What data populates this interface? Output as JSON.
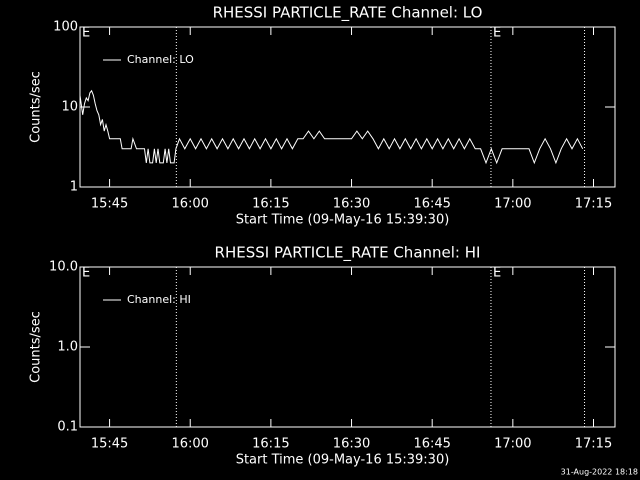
{
  "chart_data": [
    {
      "type": "line",
      "title": "RHESSI PARTICLE_RATE Channel: LO",
      "xlabel": "Start Time (09-May-16 15:39:30)",
      "ylabel": "Counts/sec",
      "log_y": true,
      "ylim": [
        1,
        100
      ],
      "yticks": [
        1,
        10,
        100
      ],
      "xlim": [
        "15:39:30",
        "17:19:00"
      ],
      "xticks": [
        "15:45",
        "16:00",
        "16:15",
        "16:30",
        "16:45",
        "17:00",
        "17:15"
      ],
      "vlines": [
        "15:57:25",
        "16:55:56",
        "17:13:20"
      ],
      "annotations": [
        {
          "x": "15:39:30",
          "text": "E"
        },
        {
          "x": "16:55:56",
          "text": "E"
        }
      ],
      "series": [
        {
          "name": "Channel: LO",
          "color": "#ffffff",
          "x": [
            "15:39:30",
            "15:40:00",
            "15:40:20",
            "15:40:40",
            "15:41:00",
            "15:41:20",
            "15:41:40",
            "15:42:00",
            "15:42:20",
            "15:42:40",
            "15:43:00",
            "15:43:20",
            "15:43:40",
            "15:44:00",
            "15:44:20",
            "15:44:40",
            "15:45:00",
            "15:47:00",
            "15:47:20",
            "15:49:00",
            "15:49:20",
            "15:50:00",
            "15:51:30",
            "15:51:50",
            "15:52:10",
            "15:52:30",
            "15:53:00",
            "15:53:20",
            "15:53:40",
            "15:54:00",
            "15:54:20",
            "15:55:00",
            "15:55:20",
            "15:55:40",
            "15:56:00",
            "15:56:20",
            "15:57:00",
            "15:57:20",
            "15:58:00",
            "15:59:00",
            "16:00:00",
            "16:01:00",
            "16:02:00",
            "16:03:00",
            "16:04:00",
            "16:05:00",
            "16:06:00",
            "16:07:00",
            "16:08:00",
            "16:09:00",
            "16:10:00",
            "16:11:00",
            "16:12:00",
            "16:13:00",
            "16:14:00",
            "16:15:00",
            "16:16:00",
            "16:17:00",
            "16:18:00",
            "16:19:00",
            "16:20:00",
            "16:21:00",
            "16:22:00",
            "16:23:00",
            "16:24:00",
            "16:25:00",
            "16:30:00",
            "16:31:00",
            "16:32:00",
            "16:33:00",
            "16:34:00",
            "16:35:00",
            "16:36:00",
            "16:37:00",
            "16:38:00",
            "16:39:00",
            "16:40:00",
            "16:41:00",
            "16:42:00",
            "16:43:00",
            "16:44:00",
            "16:45:00",
            "16:46:00",
            "16:47:00",
            "16:48:00",
            "16:49:00",
            "16:50:00",
            "16:51:00",
            "16:52:00",
            "16:53:00",
            "16:54:00",
            "16:55:00",
            "16:56:00",
            "16:57:00",
            "16:58:00",
            "17:03:00",
            "17:04:00",
            "17:05:00",
            "17:06:00",
            "17:07:00",
            "17:08:00",
            "17:09:00",
            "17:10:00",
            "17:11:00",
            "17:12:00",
            "17:13:00"
          ],
          "values": [
            14,
            8,
            11,
            13,
            12,
            15,
            16,
            14,
            11,
            9,
            8,
            6,
            7,
            5,
            6,
            5,
            4,
            4,
            3,
            3,
            4,
            3,
            3,
            2,
            3,
            2,
            2,
            3,
            2,
            3,
            2,
            2,
            3,
            2,
            3,
            2,
            2,
            3,
            4,
            3,
            4,
            3,
            4,
            3,
            4,
            3,
            4,
            3,
            4,
            3,
            4,
            3,
            4,
            3,
            4,
            3,
            4,
            3,
            4,
            3,
            4,
            4,
            5,
            4,
            5,
            4,
            4,
            5,
            4,
            5,
            4,
            3,
            4,
            3,
            4,
            3,
            4,
            3,
            4,
            3,
            4,
            3,
            4,
            3,
            4,
            3,
            4,
            3,
            4,
            3,
            3,
            2,
            3,
            2,
            3,
            3,
            2,
            3,
            4,
            3,
            2,
            3,
            4,
            3,
            4,
            3
          ]
        }
      ],
      "legend": "upper left"
    },
    {
      "type": "line",
      "title": "RHESSI PARTICLE_RATE Channel: HI",
      "xlabel": "Start Time (09-May-16 15:39:30)",
      "ylabel": "Counts/sec",
      "log_y": true,
      "ylim": [
        0.1,
        10
      ],
      "yticks": [
        {
          "value": 0.1,
          "label": "0.1"
        },
        {
          "value": 1,
          "label": "1.0"
        },
        {
          "value": 10,
          "label": "10.0"
        }
      ],
      "xlim": [
        "15:39:30",
        "17:19:00"
      ],
      "xticks": [
        "15:45",
        "16:00",
        "16:15",
        "16:30",
        "16:45",
        "17:00",
        "17:15"
      ],
      "vlines": [
        "15:57:25",
        "16:55:56",
        "17:13:20"
      ],
      "annotations": [
        {
          "x": "15:39:30",
          "text": "E"
        },
        {
          "x": "16:55:56",
          "text": "E"
        }
      ],
      "series": [
        {
          "name": "Channel: HI",
          "color": "#ffffff",
          "x": [],
          "values": []
        }
      ],
      "legend": "upper left"
    }
  ],
  "footer": "31-Aug-2022 18:18"
}
